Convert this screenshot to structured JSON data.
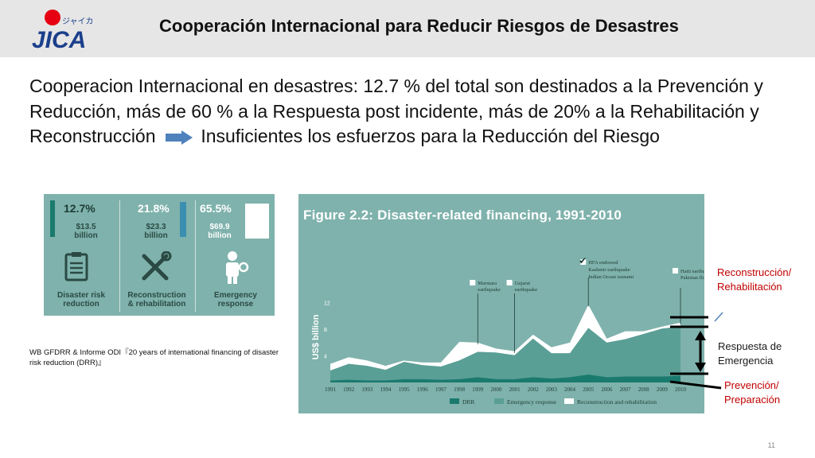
{
  "header": {
    "logo_text": "JICA",
    "logo_subtext": "ジャイカ",
    "title": "Cooperación Internacional para Reducir Riesgos de Desastres"
  },
  "body": {
    "text_part1": "Cooperacion Internacional en desastres: 12.7 % del total son destinados a la Prevención y Reducción, más de 60 % a la Respuesta post incidente, más de 20% a la Rehabilitación y Reconstrucción",
    "text_part2": "Insuficientes los esfuerzos para la Reducción del Riesgo"
  },
  "infographic": {
    "columns": [
      {
        "percent": "12.7%",
        "amount": "$13.5",
        "unit": "billion",
        "caption_line1": "Disaster risk",
        "caption_line2": "reduction",
        "icon": "clipboard-icon",
        "fill": 0.127
      },
      {
        "percent": "21.8%",
        "amount": "$23.3",
        "unit": "billion",
        "caption_line1": "Reconstruction",
        "caption_line2": "& rehabilitation",
        "icon": "tools-icon",
        "fill": 0.218
      },
      {
        "percent": "65.5%",
        "amount": "$69.9",
        "unit": "billion",
        "caption_line1": "Emergency",
        "caption_line2": "response",
        "icon": "aid-worker-icon",
        "fill": 0.655
      }
    ]
  },
  "source_note": "WB GFDRR & Informe ODI『20 years of international financing of disaster risk reduction (DRR)』",
  "chart_data": {
    "type": "area",
    "title": "Figure 2.2: Disaster-related financing, 1991-2010",
    "ylabel": "US$ billion",
    "xlabel": "",
    "ylim": [
      0,
      14
    ],
    "yticks": [
      4,
      8,
      12
    ],
    "x": [
      "1991",
      "1992",
      "1993",
      "1994",
      "1995",
      "1996",
      "1997",
      "1998",
      "1999",
      "2000",
      "2001",
      "2002",
      "2003",
      "2004",
      "2005",
      "2006",
      "2007",
      "2008",
      "2009",
      "2010"
    ],
    "series": [
      {
        "name": "DRR",
        "color": "#1a7a6e",
        "values": [
          0.3,
          0.4,
          0.3,
          0.3,
          0.5,
          0.5,
          0.4,
          0.5,
          0.8,
          0.5,
          0.5,
          0.8,
          0.6,
          0.8,
          1.2,
          0.8,
          0.9,
          0.9,
          0.9,
          1.0
        ]
      },
      {
        "name": "Emergency response",
        "color": "#5a9f95",
        "values": [
          1.5,
          2.4,
          2.2,
          1.6,
          2.6,
          2.1,
          2.0,
          2.8,
          3.8,
          4.0,
          3.6,
          5.8,
          3.8,
          3.6,
          7.0,
          5.2,
          5.6,
          6.4,
          7.2,
          7.4
        ]
      },
      {
        "name": "Reconstruction and rehabilitation",
        "color": "#ffffff",
        "values": [
          1.0,
          1.0,
          0.8,
          0.6,
          0.2,
          0.4,
          0.6,
          2.8,
          1.4,
          0.6,
          0.6,
          0.6,
          0.9,
          1.6,
          3.5,
          0.6,
          1.2,
          0.4,
          0.3,
          0.6
        ]
      }
    ],
    "annotations": [
      {
        "year": "1999",
        "label_line1": "Marmara",
        "label_line2": "earthquake"
      },
      {
        "year": "2001",
        "label_line1": "Gujarat",
        "label_line2": "earthquake"
      },
      {
        "year": "2005",
        "label_line1": "HFA endorsed",
        "label_line2": "",
        "extra": [
          "Kashmir earthquake",
          "Indian Ocean tsunami"
        ]
      },
      {
        "year": "2010",
        "label_line1": "Haiti earthquake",
        "label_line2": "",
        "extra": [
          "Pakistan flooding"
        ]
      }
    ],
    "legend_position": "bottom"
  },
  "side_labels": {
    "reconstruction": [
      "Reconstrucción/",
      "Rehabilitación"
    ],
    "response": [
      "Respuesta de",
      "Emergencia"
    ],
    "prevention": [
      "Prevención/",
      "Preparación"
    ]
  },
  "colors": {
    "panel_bg": "#7fb2ac",
    "drr": "#1a7a6e",
    "emergency": "#5a9f95",
    "reconstruction": "#ffffff",
    "red_label": "#c00000"
  },
  "page_number": "11"
}
